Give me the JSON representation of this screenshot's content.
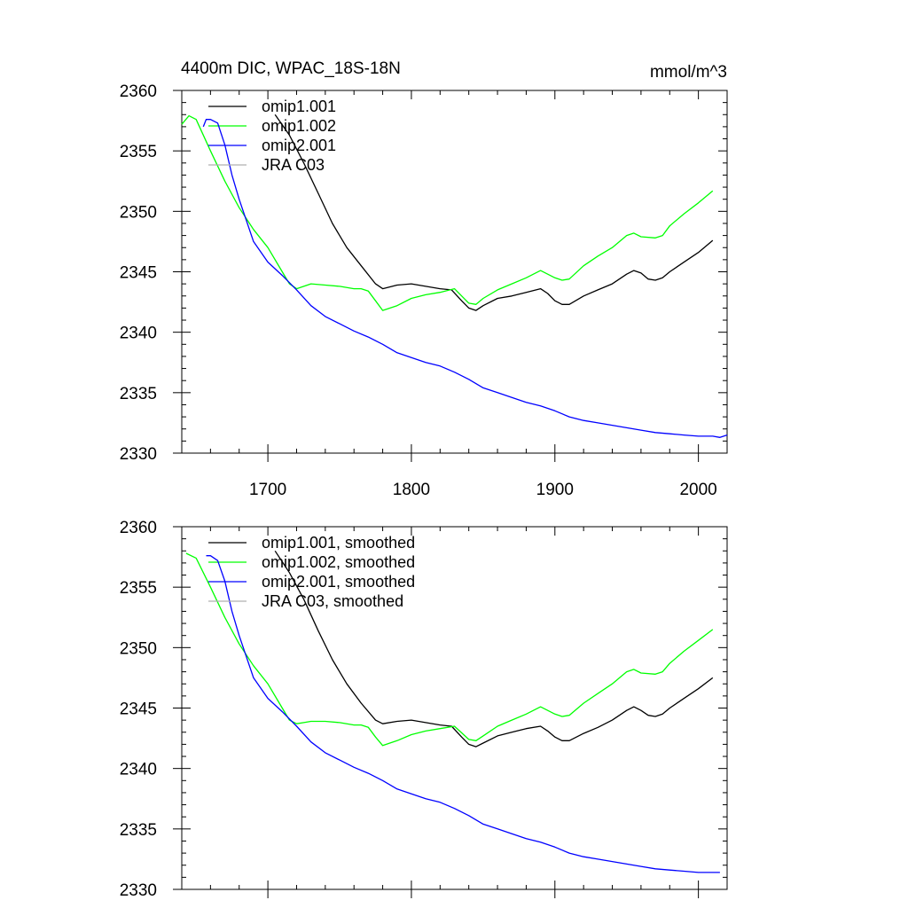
{
  "figure": {
    "title": "4400m DIC, WPAC_18S-18N",
    "units": "mmol/m^3"
  },
  "chart_data": [
    {
      "type": "line",
      "xlim": [
        1640,
        2020
      ],
      "ylim": [
        2330,
        2360
      ],
      "x_ticks": [
        1700,
        1800,
        1900,
        2000
      ],
      "y_ticks": [
        2330,
        2335,
        2340,
        2345,
        2350,
        2355,
        2360
      ],
      "x_tick_labels": [
        "1700",
        "1800",
        "1900",
        "2000"
      ],
      "y_tick_labels": [
        "2330",
        "2335",
        "2340",
        "2345",
        "2350",
        "2355",
        "2360"
      ],
      "legend_position": "top-left",
      "series": [
        {
          "name": "omip1.001",
          "color": "#000000",
          "x": [
            1705,
            1715,
            1725,
            1735,
            1745,
            1755,
            1765,
            1775,
            1780,
            1790,
            1800,
            1810,
            1820,
            1828,
            1835,
            1840,
            1845,
            1850,
            1860,
            1870,
            1880,
            1890,
            1895,
            1900,
            1905,
            1910,
            1920,
            1930,
            1940,
            1950,
            1955,
            1960,
            1965,
            1970,
            1975,
            1980,
            1990,
            2000,
            2010
          ],
          "y": [
            2358,
            2356.3,
            2354,
            2351.5,
            2349,
            2347,
            2345.5,
            2344,
            2343.6,
            2343.9,
            2344,
            2343.8,
            2343.6,
            2343.5,
            2342.6,
            2342,
            2341.8,
            2342.2,
            2342.8,
            2343,
            2343.3,
            2343.6,
            2343.2,
            2342.6,
            2342.3,
            2342.3,
            2343,
            2343.5,
            2344,
            2344.8,
            2345.1,
            2344.9,
            2344.4,
            2344.3,
            2344.5,
            2345,
            2345.8,
            2346.6,
            2347.6
          ]
        },
        {
          "name": "omip1.002",
          "color": "#00ff00",
          "x": [
            1640,
            1645,
            1650,
            1660,
            1670,
            1680,
            1690,
            1700,
            1710,
            1715,
            1720,
            1725,
            1730,
            1740,
            1750,
            1760,
            1765,
            1770,
            1775,
            1780,
            1790,
            1800,
            1810,
            1820,
            1830,
            1840,
            1845,
            1850,
            1860,
            1870,
            1880,
            1890,
            1900,
            1905,
            1910,
            1920,
            1930,
            1940,
            1950,
            1955,
            1960,
            1970,
            1975,
            1980,
            1990,
            2000,
            2010
          ],
          "y": [
            2357.2,
            2357.9,
            2357.6,
            2355,
            2352.5,
            2350.3,
            2348.5,
            2347,
            2345,
            2344,
            2343.6,
            2343.8,
            2344,
            2343.9,
            2343.8,
            2343.6,
            2343.6,
            2343.4,
            2342.6,
            2341.8,
            2342.2,
            2342.8,
            2343.1,
            2343.3,
            2343.6,
            2342.4,
            2342.3,
            2342.8,
            2343.5,
            2344,
            2344.5,
            2345.1,
            2344.5,
            2344.3,
            2344.4,
            2345.5,
            2346.3,
            2347,
            2348,
            2348.2,
            2347.9,
            2347.8,
            2348,
            2348.8,
            2349.8,
            2350.7,
            2351.7
          ]
        },
        {
          "name": "omip2.001",
          "color": "#0000ff",
          "x": [
            1655,
            1657,
            1660,
            1665,
            1670,
            1675,
            1680,
            1690,
            1700,
            1710,
            1720,
            1730,
            1740,
            1750,
            1760,
            1770,
            1780,
            1790,
            1800,
            1810,
            1820,
            1830,
            1840,
            1850,
            1860,
            1870,
            1880,
            1890,
            1900,
            1910,
            1920,
            1930,
            1940,
            1950,
            1960,
            1970,
            1980,
            1990,
            2000,
            2010,
            2015,
            2020
          ],
          "y": [
            2357,
            2357.6,
            2357.6,
            2357.3,
            2355.5,
            2353,
            2351,
            2347.5,
            2345.8,
            2344.7,
            2343.5,
            2342.2,
            2341.3,
            2340.7,
            2340.1,
            2339.6,
            2339,
            2338.3,
            2337.9,
            2337.5,
            2337.2,
            2336.7,
            2336.1,
            2335.4,
            2335,
            2334.6,
            2334.2,
            2333.9,
            2333.5,
            2333,
            2332.7,
            2332.5,
            2332.3,
            2332.1,
            2331.9,
            2331.7,
            2331.6,
            2331.5,
            2331.4,
            2331.4,
            2331.3,
            2331.5
          ]
        },
        {
          "name": "JRA C03",
          "color": "#b0b0b0",
          "x": [],
          "y": []
        }
      ]
    },
    {
      "type": "line",
      "xlim": [
        1640,
        2020
      ],
      "ylim": [
        2330,
        2360
      ],
      "x_ticks": [
        1700,
        1800,
        1900,
        2000
      ],
      "y_ticks": [
        2330,
        2335,
        2340,
        2345,
        2350,
        2355,
        2360
      ],
      "y_tick_labels": [
        "2330",
        "2335",
        "2340",
        "2345",
        "2350",
        "2355",
        "2360"
      ],
      "legend_position": "top-left",
      "series": [
        {
          "name": "omip1.001, smoothed",
          "color": "#000000",
          "x": [
            1705,
            1715,
            1725,
            1735,
            1745,
            1755,
            1765,
            1775,
            1780,
            1790,
            1800,
            1810,
            1820,
            1828,
            1835,
            1840,
            1845,
            1850,
            1860,
            1870,
            1880,
            1890,
            1895,
            1900,
            1905,
            1910,
            1920,
            1930,
            1940,
            1950,
            1955,
            1960,
            1965,
            1970,
            1975,
            1980,
            1990,
            2000,
            2010
          ],
          "y": [
            2358,
            2356.2,
            2354,
            2351.4,
            2349,
            2347,
            2345.4,
            2344,
            2343.7,
            2343.9,
            2344,
            2343.8,
            2343.6,
            2343.5,
            2342.6,
            2342,
            2341.8,
            2342.1,
            2342.7,
            2343,
            2343.3,
            2343.5,
            2343.1,
            2342.6,
            2342.3,
            2342.3,
            2342.9,
            2343.4,
            2344,
            2344.8,
            2345.1,
            2344.8,
            2344.4,
            2344.3,
            2344.5,
            2345,
            2345.8,
            2346.6,
            2347.5
          ]
        },
        {
          "name": "omip1.002, smoothed",
          "color": "#00ff00",
          "x": [
            1643,
            1650,
            1660,
            1670,
            1680,
            1690,
            1700,
            1710,
            1715,
            1720,
            1725,
            1730,
            1740,
            1750,
            1760,
            1765,
            1770,
            1775,
            1780,
            1790,
            1800,
            1810,
            1820,
            1830,
            1840,
            1845,
            1850,
            1860,
            1870,
            1880,
            1890,
            1900,
            1905,
            1910,
            1920,
            1930,
            1940,
            1950,
            1955,
            1960,
            1970,
            1975,
            1980,
            1990,
            2000,
            2010
          ],
          "y": [
            2357.8,
            2357.4,
            2355,
            2352.5,
            2350.3,
            2348.5,
            2347,
            2345,
            2344,
            2343.7,
            2343.8,
            2343.9,
            2343.9,
            2343.8,
            2343.6,
            2343.6,
            2343.4,
            2342.6,
            2341.9,
            2342.3,
            2342.8,
            2343.1,
            2343.3,
            2343.5,
            2342.4,
            2342.3,
            2342.7,
            2343.5,
            2344,
            2344.5,
            2345.1,
            2344.5,
            2344.3,
            2344.4,
            2345.4,
            2346.2,
            2347,
            2348,
            2348.2,
            2347.9,
            2347.8,
            2348,
            2348.7,
            2349.7,
            2350.6,
            2351.5
          ]
        },
        {
          "name": "omip2.001, smoothed",
          "color": "#0000ff",
          "x": [
            1657,
            1660,
            1665,
            1670,
            1675,
            1680,
            1690,
            1700,
            1710,
            1720,
            1730,
            1740,
            1750,
            1760,
            1770,
            1780,
            1790,
            1800,
            1810,
            1820,
            1830,
            1840,
            1850,
            1860,
            1870,
            1880,
            1890,
            1900,
            1910,
            1920,
            1930,
            1940,
            1950,
            1960,
            1970,
            1980,
            1990,
            2000,
            2010,
            2015
          ],
          "y": [
            2357.6,
            2357.6,
            2357.2,
            2355.5,
            2353,
            2351,
            2347.5,
            2345.8,
            2344.7,
            2343.5,
            2342.2,
            2341.3,
            2340.7,
            2340.1,
            2339.6,
            2339,
            2338.3,
            2337.9,
            2337.5,
            2337.2,
            2336.7,
            2336.1,
            2335.4,
            2335,
            2334.6,
            2334.2,
            2333.9,
            2333.5,
            2333,
            2332.7,
            2332.5,
            2332.3,
            2332.1,
            2331.9,
            2331.7,
            2331.6,
            2331.5,
            2331.4,
            2331.4,
            2331.4
          ]
        },
        {
          "name": "JRA C03, smoothed",
          "color": "#b0b0b0",
          "x": [],
          "y": []
        }
      ]
    }
  ]
}
